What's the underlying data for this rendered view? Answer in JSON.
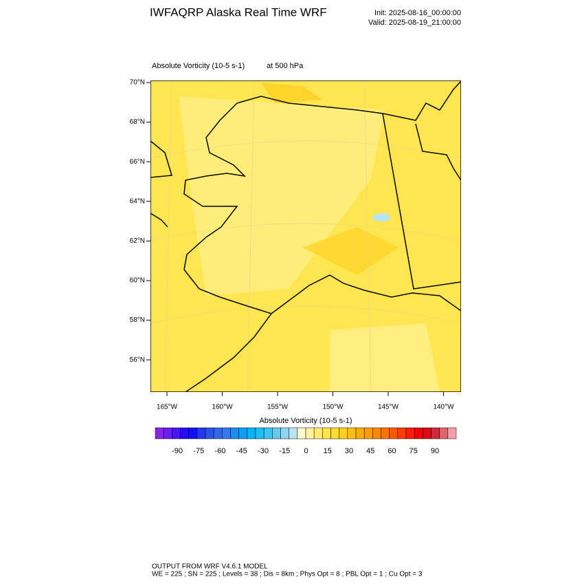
{
  "header": {
    "title": "IWFAQRP Alaska Real Time WRF",
    "init": "Init: 2025-08-16_00:00:00",
    "valid": "Valid: 2025-08-19_21:00:00"
  },
  "map": {
    "field": "Absolute Vorticity   (10-5 s-1)",
    "level": "at   500 hPa",
    "lat_ticks": [
      {
        "value": 70,
        "label": "70°N"
      },
      {
        "value": 68,
        "label": "68°N"
      },
      {
        "value": 66,
        "label": "66°N"
      },
      {
        "value": 64,
        "label": "64°N"
      },
      {
        "value": 62,
        "label": "62°N"
      },
      {
        "value": 60,
        "label": "60°N"
      },
      {
        "value": 58,
        "label": "58°N"
      },
      {
        "value": 56,
        "label": "56°N"
      }
    ],
    "lon_ticks": [
      {
        "value": -165,
        "label": "165°W"
      },
      {
        "value": -160,
        "label": "160°W"
      },
      {
        "value": -155,
        "label": "155°W"
      },
      {
        "value": -150,
        "label": "150°W"
      },
      {
        "value": -145,
        "label": "145°W"
      },
      {
        "value": -140,
        "label": "140°W"
      }
    ]
  },
  "colorbar": {
    "title": "Absolute Vorticity  (10-5 s-1)",
    "colors": [
      "#8a22e8",
      "#6a1ef0",
      "#4a14f6",
      "#2a0afa",
      "#1010ff",
      "#2038f0",
      "#2c52e8",
      "#3268e6",
      "#3878ec",
      "#1c8cf0",
      "#0ca0f4",
      "#06b4f6",
      "#1cc0f4",
      "#40c4f0",
      "#68c8ec",
      "#90d4f0",
      "#b8e4f4",
      "#fffacc",
      "#fff0a0",
      "#ffec70",
      "#ffe44a",
      "#ffdc30",
      "#ffd020",
      "#ffc010",
      "#ffac00",
      "#ff9c00",
      "#ff8800",
      "#ff7400",
      "#ff5800",
      "#ff3c00",
      "#ff1e00",
      "#f20000",
      "#dc0a14",
      "#d0283c",
      "#e06470",
      "#f0a0a8"
    ],
    "ticks": [
      {
        "value": -90,
        "label": "-90"
      },
      {
        "value": -75,
        "label": "-75"
      },
      {
        "value": -60,
        "label": "-60"
      },
      {
        "value": -45,
        "label": "-45"
      },
      {
        "value": -30,
        "label": "-30"
      },
      {
        "value": -15,
        "label": "-15"
      },
      0,
      15,
      30,
      45,
      60,
      75,
      90
    ]
  },
  "footer": {
    "line1": "OUTPUT FROM WRF V4.6.1 MODEL",
    "line2": "WE = 225 ; SN = 225 ; Levels = 38 ; Dis = 8km ; Phys Opt = 8 ; PBL Opt = 1 ; Cu Opt = 3"
  }
}
